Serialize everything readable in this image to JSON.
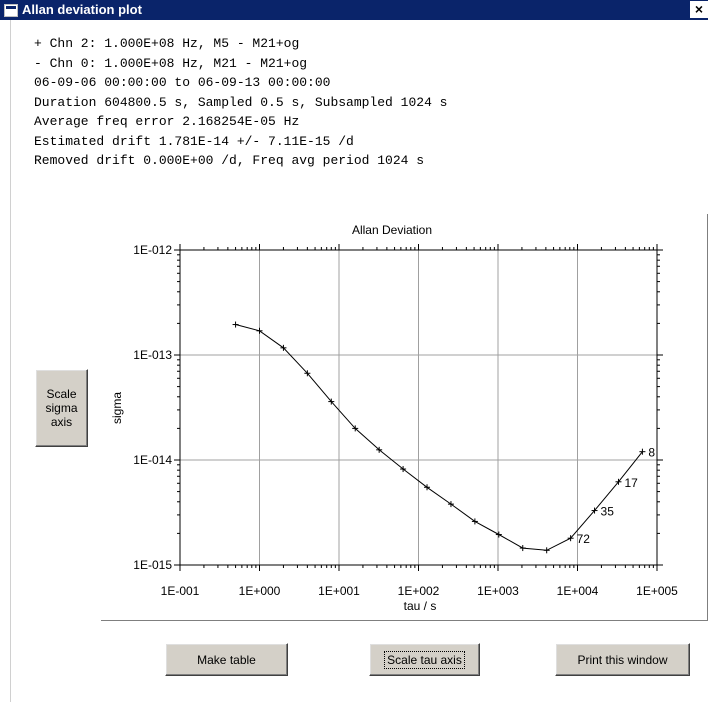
{
  "window": {
    "title": "Allan deviation plot",
    "close_label": "×",
    "app_icon": "window-icon",
    "close_icon": "close-icon"
  },
  "info_lines": [
    "+ Chn 2: 1.000E+08 Hz, M5 - M21+og",
    "- Chn 0: 1.000E+08 Hz, M21 - M21+og",
    "06-09-06 00:00:00 to 06-09-13 00:00:00",
    "Duration 604800.5 s, Sampled 0.5 s, Subsampled 1024 s",
    "Average freq error 2.168254E-05 Hz",
    "Estimated drift 1.781E-14 +/- 7.11E-15 /d",
    "Removed drift 0.000E+00 /d, Freq avg period 1024 s"
  ],
  "buttons": {
    "scale_sigma": "Scale sigma axis",
    "make_table": "Make table",
    "scale_tau": "Scale tau axis",
    "print_window": "Print this window"
  },
  "chart_data": {
    "type": "line",
    "title": "Allan Deviation",
    "xlabel": "tau / s",
    "ylabel": "sigma",
    "x_scale": "log",
    "y_scale": "log",
    "xlim": [
      0.1,
      100000
    ],
    "ylim": [
      1e-15,
      1e-12
    ],
    "x_ticks": [
      "1E-001",
      "1E+000",
      "1E+001",
      "1E+002",
      "1E+003",
      "1E+004",
      "1E+005"
    ],
    "y_ticks": [
      "1E-012",
      "1E-013",
      "1E-014",
      "1E-015"
    ],
    "grid": true,
    "series": [
      {
        "x": [
          0.5,
          1,
          2,
          4,
          8,
          16,
          32,
          64,
          128,
          256,
          512,
          1024,
          2048,
          4096,
          8192,
          16384,
          32768,
          65536
        ],
        "y": [
          1.95e-13,
          1.7e-13,
          1.17e-13,
          6.7e-14,
          3.6e-14,
          2e-14,
          1.25e-14,
          8.2e-15,
          5.5e-15,
          3.8e-15,
          2.6e-15,
          1.95e-15,
          1.45e-15,
          1.38e-15,
          1.8e-15,
          3.3e-15,
          6.2e-15,
          1.2e-14
        ]
      }
    ],
    "point_labels": [
      {
        "index": 14,
        "text": "72"
      },
      {
        "index": 15,
        "text": "35"
      },
      {
        "index": 16,
        "text": "17"
      },
      {
        "index": 17,
        "text": "8"
      }
    ]
  }
}
